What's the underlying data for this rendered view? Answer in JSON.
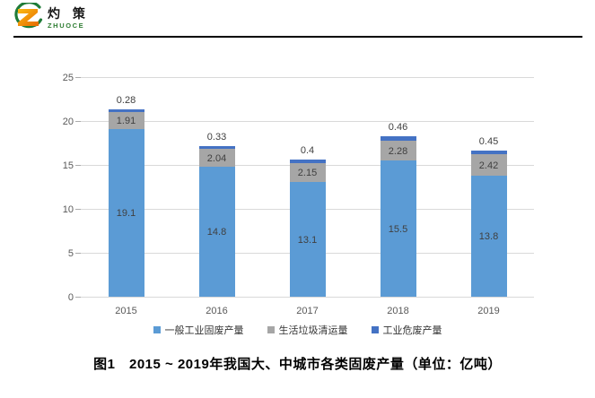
{
  "logo": {
    "cn": "灼 策",
    "en": "ZHUOCE"
  },
  "chart_data": {
    "type": "bar",
    "stacked": true,
    "categories": [
      "2015",
      "2016",
      "2017",
      "2018",
      "2019"
    ],
    "series": [
      {
        "name": "一般工业固废产量",
        "color": "#5B9BD5",
        "values": [
          19.1,
          14.8,
          13.1,
          15.5,
          13.8
        ]
      },
      {
        "name": "生活垃圾清运量",
        "color": "#A6A6A6",
        "values": [
          1.91,
          2.04,
          2.15,
          2.28,
          2.42
        ]
      },
      {
        "name": "工业危废产量",
        "color": "#4472C4",
        "values": [
          0.28,
          0.33,
          0.4,
          0.46,
          0.45
        ]
      }
    ],
    "ylim": [
      0,
      25
    ],
    "yticks": [
      0,
      5,
      10,
      15,
      20,
      25
    ],
    "grid": true,
    "legend_position": "bottom",
    "value_labels": true,
    "gridline_color": "#D9D9D9",
    "axis_label_color": "#595959",
    "data_label_color": "#404040"
  },
  "caption": "图1　2015 ~ 2019年我国大、中城市各类固废产量（单位：亿吨）"
}
